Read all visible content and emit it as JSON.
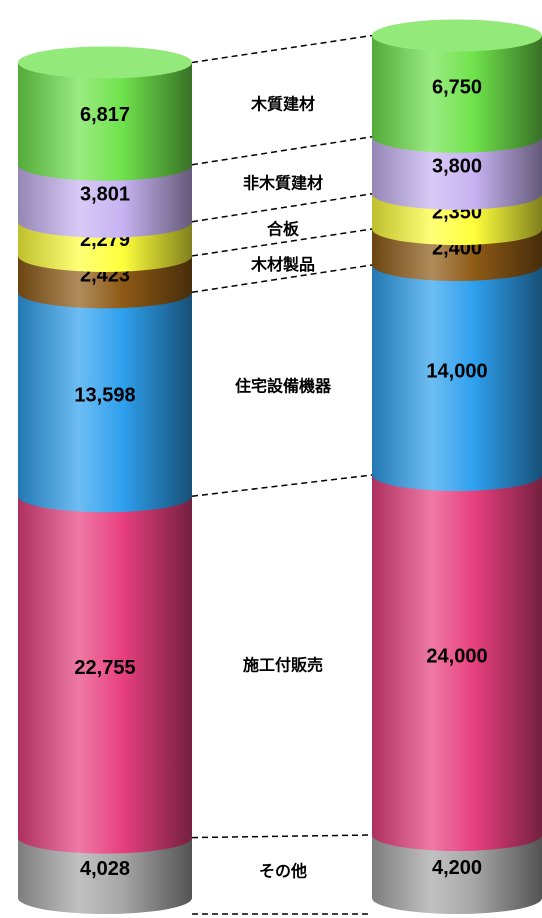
{
  "chart_data": {
    "type": "stacked-cylinder",
    "categories": [
      null,
      null
    ],
    "series": [
      {
        "name": "その他",
        "color": "#a6a6a6",
        "values": [
          4028,
          4200
        ],
        "value_labels": [
          "4,028",
          "4,200"
        ]
      },
      {
        "name": "施工付販売",
        "color": "#e8407e",
        "values": [
          22755,
          24000
        ],
        "value_labels": [
          "22,755",
          "24,000"
        ]
      },
      {
        "name": "住宅設備機器",
        "color": "#2ea0ee",
        "values": [
          13598,
          14000
        ],
        "value_labels": [
          "13,598",
          "14,000"
        ]
      },
      {
        "name": "木材製品",
        "color": "#8e5a16",
        "values": [
          2423,
          2400
        ],
        "value_labels": [
          "2,423",
          "2,400"
        ]
      },
      {
        "name": "合板",
        "color": "#ffff3c",
        "values": [
          2279,
          2350
        ],
        "value_labels": [
          "2,279",
          "2,350"
        ]
      },
      {
        "name": "非木質建材",
        "color": "#c7b3f2",
        "values": [
          3801,
          3800
        ],
        "value_labels": [
          "3,801",
          "3,800"
        ]
      },
      {
        "name": "木質建材",
        "color": "#6fe24c",
        "values": [
          6817,
          6750
        ],
        "value_labels": [
          "6,817",
          "6,750"
        ]
      }
    ]
  }
}
